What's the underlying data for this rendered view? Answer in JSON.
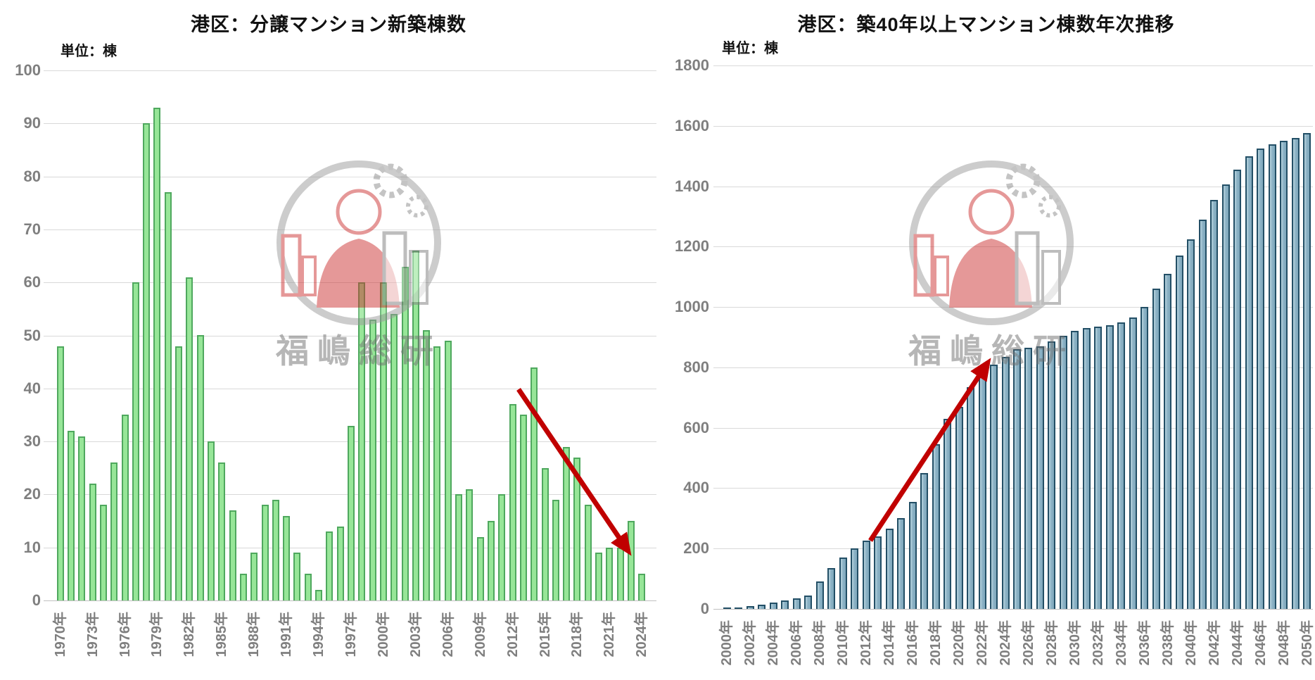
{
  "page": {
    "background": "#ffffff"
  },
  "watermark_text": "福嶋総研",
  "chart_data": [
    {
      "type": "bar",
      "title": "港区：分譲マンション新築棟数",
      "unit_label": "単位：棟",
      "xlabel": "",
      "ylabel": "棟",
      "ylim": [
        0,
        100
      ],
      "y_tick_step": 10,
      "y_tick_labels": [
        "0",
        "10",
        "20",
        "30",
        "40",
        "50",
        "60",
        "70",
        "80",
        "90",
        "100"
      ],
      "grid": "horizontal",
      "legend": "none",
      "years": [
        1970,
        1971,
        1972,
        1973,
        1974,
        1975,
        1976,
        1977,
        1978,
        1979,
        1980,
        1981,
        1982,
        1983,
        1984,
        1985,
        1986,
        1987,
        1988,
        1989,
        1990,
        1991,
        1992,
        1993,
        1994,
        1995,
        1996,
        1997,
        1998,
        1999,
        2000,
        2001,
        2002,
        2003,
        2004,
        2005,
        2006,
        2007,
        2008,
        2009,
        2010,
        2011,
        2012,
        2013,
        2014,
        2015,
        2016,
        2017,
        2018,
        2019,
        2020,
        2021,
        2022,
        2023,
        2024
      ],
      "values": [
        48,
        32,
        31,
        22,
        18,
        26,
        35,
        60,
        90,
        93,
        77,
        48,
        61,
        50,
        30,
        26,
        17,
        5,
        9,
        18,
        19,
        16,
        9,
        5,
        2,
        13,
        14,
        33,
        60,
        53,
        60,
        54,
        63,
        66,
        51,
        48,
        49,
        20,
        21,
        12,
        15,
        20,
        37,
        35,
        44,
        25,
        19,
        29,
        27,
        18,
        9,
        10,
        10,
        15,
        5
      ],
      "x_tick_labels": [
        "1970年",
        "1973年",
        "1976年",
        "1979年",
        "1982年",
        "1985年",
        "1988年",
        "1991年",
        "1994年",
        "1997年",
        "2000年",
        "2003年",
        "2006年",
        "2009年",
        "2012年",
        "2015年",
        "2018年",
        "2021年",
        "2024年"
      ],
      "x_tick_every": 3,
      "bar_fill": "#97e698",
      "bar_border": "#4fa85e",
      "annotation": {
        "type": "arrow",
        "color": "#c00000",
        "from_year": 2012,
        "to_year": 2024,
        "meaning": "decline in new construction"
      }
    },
    {
      "type": "bar",
      "title": "港区：築40年以上マンション棟数年次推移",
      "unit_label": "単位：棟",
      "xlabel": "",
      "ylabel": "棟",
      "ylim": [
        0,
        1800
      ],
      "y_tick_step": 200,
      "y_tick_labels": [
        "0",
        "200",
        "400",
        "600",
        "800",
        "1000",
        "1200",
        "1400",
        "1600",
        "1800"
      ],
      "grid": "horizontal",
      "legend": "none",
      "years": [
        2000,
        2001,
        2002,
        2003,
        2004,
        2005,
        2006,
        2007,
        2008,
        2009,
        2010,
        2011,
        2012,
        2013,
        2014,
        2015,
        2016,
        2017,
        2018,
        2019,
        2020,
        2021,
        2022,
        2023,
        2024,
        2025,
        2026,
        2027,
        2028,
        2029,
        2030,
        2031,
        2032,
        2033,
        2034,
        2035,
        2036,
        2037,
        2038,
        2039,
        2040,
        2041,
        2042,
        2043,
        2044,
        2045,
        2046,
        2047,
        2048,
        2049,
        2050
      ],
      "values": [
        3,
        5,
        9,
        15,
        21,
        29,
        36,
        45,
        90,
        135,
        170,
        200,
        225,
        240,
        265,
        300,
        355,
        450,
        545,
        630,
        670,
        735,
        785,
        810,
        835,
        860,
        865,
        870,
        885,
        905,
        920,
        930,
        935,
        940,
        950,
        965,
        1000,
        1060,
        1110,
        1170,
        1225,
        1290,
        1355,
        1405,
        1455,
        1500,
        1525,
        1540,
        1550,
        1560,
        1575
      ],
      "x_tick_labels": [
        "2000年",
        "2002年",
        "2004年",
        "2006年",
        "2008年",
        "2010年",
        "2012年",
        "2014年",
        "2016年",
        "2018年",
        "2020年",
        "2022年",
        "2024年",
        "2026年",
        "2028年",
        "2030年",
        "2032年",
        "2034年",
        "2036年",
        "2038年",
        "2040年",
        "2042年",
        "2044年",
        "2046年",
        "2048年",
        "2050年"
      ],
      "x_tick_every": 2,
      "bar_fill": "#8db3c6",
      "bar_border": "#234f66",
      "annotation": {
        "type": "arrow",
        "color": "#c00000",
        "from_year": 2012,
        "to_year": 2023,
        "meaning": "rapid increase of aged stock"
      }
    }
  ]
}
